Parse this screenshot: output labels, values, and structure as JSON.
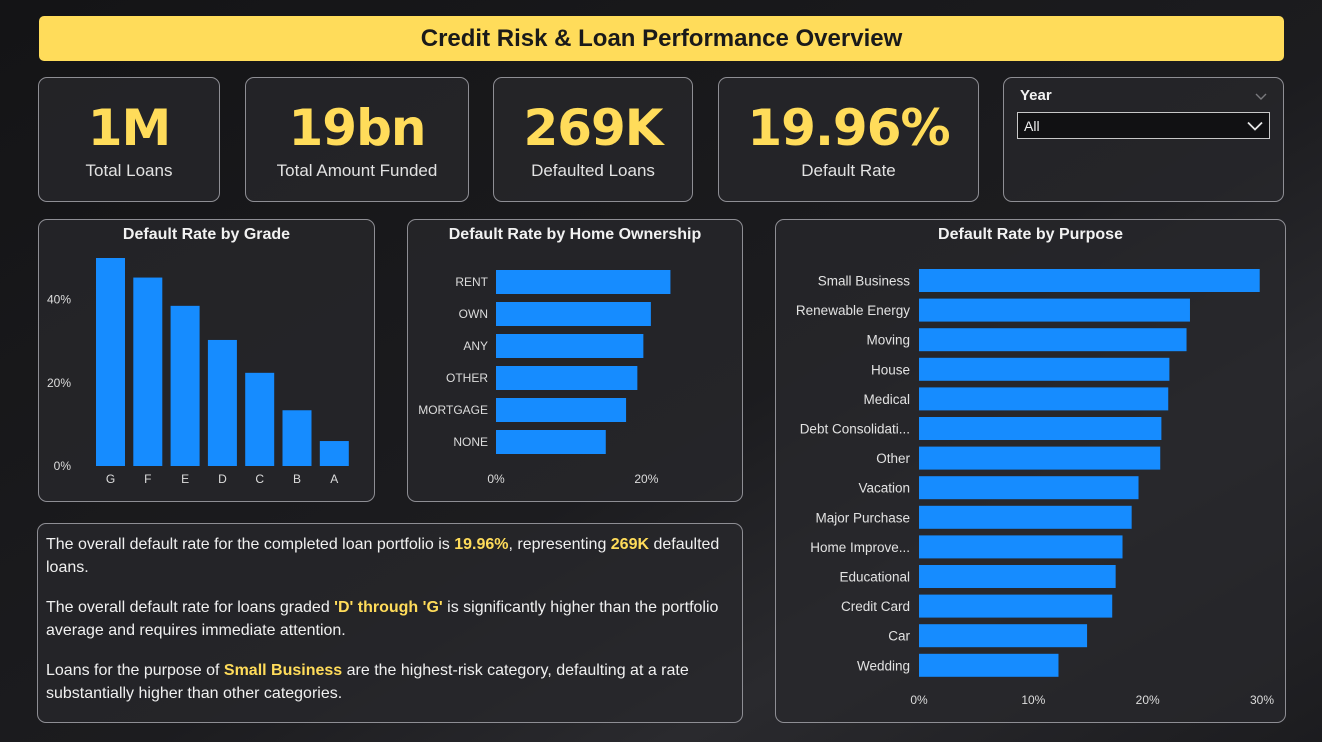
{
  "title": "Credit Risk & Loan Performance Overview",
  "kpis": [
    {
      "value": "1M",
      "label": "Total Loans"
    },
    {
      "value": "19bn",
      "label": "Total Amount Funded"
    },
    {
      "value": "269K",
      "label": "Defaulted Loans"
    },
    {
      "value": "19.96%",
      "label": "Default Rate"
    }
  ],
  "slicer": {
    "title": "Year",
    "selected": "All"
  },
  "colors": {
    "accent": "#ffdc5a",
    "bar": "#168cff"
  },
  "chart_data": [
    {
      "type": "bar",
      "title": "Default Rate by Grade",
      "categories": [
        "G",
        "F",
        "E",
        "D",
        "C",
        "B",
        "A"
      ],
      "values": [
        50,
        45.3,
        38.5,
        30.3,
        22.4,
        13.4,
        6.0
      ],
      "ylim": [
        0,
        50
      ],
      "yticks": [
        "0%",
        "20%",
        "40%"
      ],
      "ytick_values": [
        0,
        20,
        40
      ],
      "grid": false
    },
    {
      "type": "bar",
      "orientation": "horizontal",
      "title": "Default Rate by Home Ownership",
      "categories": [
        "RENT",
        "OWN",
        "ANY",
        "OTHER",
        "MORTGAGE",
        "NONE"
      ],
      "values": [
        23.2,
        20.6,
        19.6,
        18.8,
        17.3,
        14.6
      ],
      "xlim": [
        0,
        27
      ],
      "xticks": [
        "0%",
        "20%"
      ],
      "xtick_values": [
        0,
        20
      ],
      "grid": false
    },
    {
      "type": "bar",
      "orientation": "horizontal",
      "title": "Default Rate by Purpose",
      "categories": [
        "Small Business",
        "Renewable Energy",
        "Moving",
        "House",
        "Medical",
        "Debt Consolidati...",
        "Other",
        "Vacation",
        "Major Purchase",
        "Home Improve...",
        "Educational",
        "Credit Card",
        "Car",
        "Wedding"
      ],
      "values": [
        29.8,
        23.7,
        23.4,
        21.9,
        21.8,
        21.2,
        21.1,
        19.2,
        18.6,
        17.8,
        17.2,
        16.9,
        14.7,
        12.2
      ],
      "xlim": [
        0,
        30
      ],
      "xticks": [
        "0%",
        "10%",
        "20%",
        "30%"
      ],
      "xtick_values": [
        0,
        10,
        20,
        30
      ],
      "grid": false
    }
  ],
  "insights": {
    "p1_pre": "The overall default rate for the completed loan portfolio is ",
    "p1_rate": "19.96%",
    "p1_mid": ", representing ",
    "p1_count": "269K",
    "p1_post": " defaulted loans.",
    "p2_pre": "The overall default rate for loans graded ",
    "p2_grades": "'D' through 'G'",
    "p2_post": " is significantly higher than the portfolio average and requires immediate attention.",
    "p3_pre": "Loans for the purpose of ",
    "p3_purpose": "Small Business",
    "p3_post": " are the highest-risk category, defaulting at a rate substantially higher than other categories."
  }
}
